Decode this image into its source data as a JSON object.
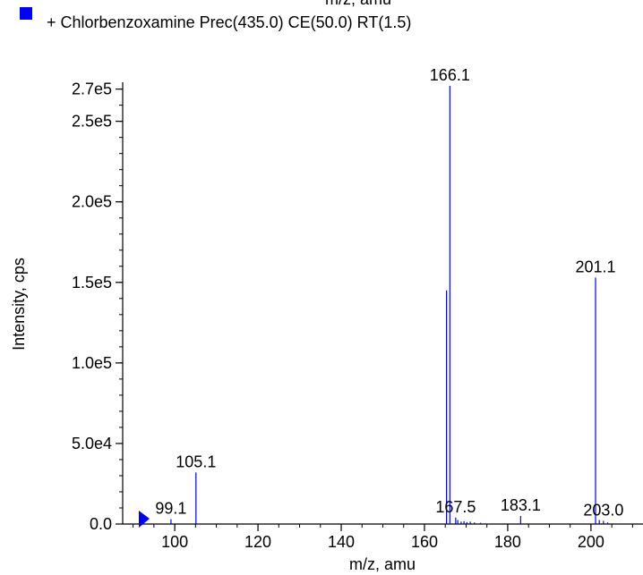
{
  "chart_data": {
    "type": "bar",
    "top_axis_label": "m/z, amu",
    "legend": {
      "placement": "top-left",
      "color": "#0000ff",
      "label": "+ Chlorbenzoxamine Prec(435.0) CE(50.0) RT(1.5)"
    },
    "xlabel": "m/z, amu",
    "ylabel": "Intensity, cps",
    "xlim": [
      87.5,
      212.5
    ],
    "ylim": [
      0,
      272000
    ],
    "x_ticks": [
      {
        "value": 100,
        "label": "100"
      },
      {
        "value": 120,
        "label": "120"
      },
      {
        "value": 140,
        "label": "140"
      },
      {
        "value": 160,
        "label": "160"
      },
      {
        "value": 180,
        "label": "180"
      },
      {
        "value": 200,
        "label": "200"
      }
    ],
    "y_ticks": [
      {
        "value": 0,
        "label": "0.0"
      },
      {
        "value": 50000,
        "label": "5.0e4"
      },
      {
        "value": 100000,
        "label": "1.0e5"
      },
      {
        "value": 150000,
        "label": "1.5e5"
      },
      {
        "value": 200000,
        "label": "2.0e5"
      },
      {
        "value": 250000,
        "label": "2.5e5"
      },
      {
        "value": 270000,
        "label": "2.7e5"
      }
    ],
    "series_color": "#0000ff",
    "peaks": [
      {
        "mz": 99.1,
        "intensity": 3000,
        "label": "99.1"
      },
      {
        "mz": 105.1,
        "intensity": 32000,
        "label": "105.1"
      },
      {
        "mz": 165.3,
        "intensity": 145000,
        "label": ""
      },
      {
        "mz": 166.1,
        "intensity": 272000,
        "label": "166.1"
      },
      {
        "mz": 167.5,
        "intensity": 4000,
        "label": "167.5"
      },
      {
        "mz": 168.0,
        "intensity": 2500,
        "label": ""
      },
      {
        "mz": 168.8,
        "intensity": 1500,
        "label": ""
      },
      {
        "mz": 169.5,
        "intensity": 1800,
        "label": ""
      },
      {
        "mz": 170.2,
        "intensity": 1200,
        "label": ""
      },
      {
        "mz": 171.0,
        "intensity": 1500,
        "label": ""
      },
      {
        "mz": 172.0,
        "intensity": 1000,
        "label": ""
      },
      {
        "mz": 173.5,
        "intensity": 800,
        "label": ""
      },
      {
        "mz": 183.1,
        "intensity": 5000,
        "label": "183.1"
      },
      {
        "mz": 201.1,
        "intensity": 153000,
        "label": "201.1"
      },
      {
        "mz": 202.0,
        "intensity": 2500,
        "label": ""
      },
      {
        "mz": 203.0,
        "intensity": 2000,
        "label": "203.0"
      },
      {
        "mz": 204.0,
        "intensity": 1000,
        "label": ""
      }
    ]
  }
}
